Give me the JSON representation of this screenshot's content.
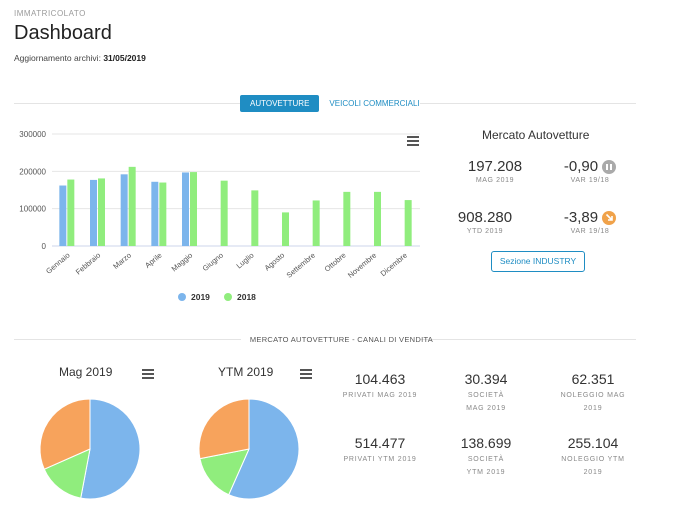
{
  "header": {
    "eyebrow": "IMMATRICOLATO",
    "title": "Dashboard",
    "updated_label": "Aggiornamento archivi:",
    "updated_value": "31/05/2019"
  },
  "tabs": [
    {
      "label": "AUTOVETTURE",
      "active": true
    },
    {
      "label": "VEICOLI COMMERCIALI",
      "active": false
    }
  ],
  "chart_data": {
    "type": "bar",
    "categories": [
      "Gennaio",
      "Febbraio",
      "Marzo",
      "Aprile",
      "Maggio",
      "Giugno",
      "Luglio",
      "Agosto",
      "Settembre",
      "Ottobre",
      "Novembre",
      "Dicembre"
    ],
    "series": [
      {
        "name": "2019",
        "color": "#7cb5ec",
        "values": [
          162000,
          177000,
          192000,
          172000,
          197000,
          null,
          null,
          null,
          null,
          null,
          null,
          null
        ]
      },
      {
        "name": "2018",
        "color": "#90ed7d",
        "values": [
          178000,
          181000,
          212000,
          170000,
          198000,
          175000,
          149000,
          90000,
          122000,
          145000,
          145000,
          123000
        ]
      }
    ],
    "ylim": [
      0,
      300000
    ],
    "yticks": [
      "0",
      "100000",
      "200000",
      "300000"
    ],
    "grid": true,
    "legend": "bottom"
  },
  "market": {
    "title": "Mercato Autovetture",
    "month_value": "197.208",
    "month_label": "MAG 2019",
    "month_var": "-0,90",
    "month_var_label": "VAR 19/18",
    "month_var_color": "#aaaaaa",
    "ytd_value": "908.280",
    "ytd_label": "YTD 2019",
    "ytd_var": "-3,89",
    "ytd_var_label": "VAR 19/18",
    "ytd_var_color": "#f0a24a",
    "industry_button": "Sezione INDUSTRY"
  },
  "sales_channels": {
    "section_label": "MERCATO AUTOVETTURE - CANALI DI VENDITA",
    "pies": [
      {
        "title": "Mag 2019",
        "slices": [
          {
            "name": "Privati",
            "value": 104463,
            "color": "#7cb5ec"
          },
          {
            "name": "Società",
            "value": 30394,
            "color": "#90ed7d"
          },
          {
            "name": "Noleggio",
            "value": 62351,
            "color": "#f7a35c"
          }
        ]
      },
      {
        "title": "YTM 2019",
        "slices": [
          {
            "name": "Privati",
            "value": 514477,
            "color": "#7cb5ec"
          },
          {
            "name": "Società",
            "value": 138699,
            "color": "#90ed7d"
          },
          {
            "name": "Noleggio",
            "value": 255104,
            "color": "#f7a35c"
          }
        ]
      }
    ],
    "kpis": [
      {
        "value": "104.463",
        "label": "PRIVATI MAG 2019"
      },
      {
        "value": "30.394",
        "label": "SOCIETÀ MAG 2019"
      },
      {
        "value": "62.351",
        "label": "NOLEGGIO MAG 2019"
      },
      {
        "value": "514.477",
        "label": "PRIVATI YTM 2019"
      },
      {
        "value": "138.699",
        "label": "SOCIETÀ YTM 2019"
      },
      {
        "value": "255.104",
        "label": "NOLEGGIO YTM 2019"
      }
    ]
  },
  "icons": [
    "menu-icon",
    "pause-icon",
    "arrow-down-right-icon"
  ]
}
